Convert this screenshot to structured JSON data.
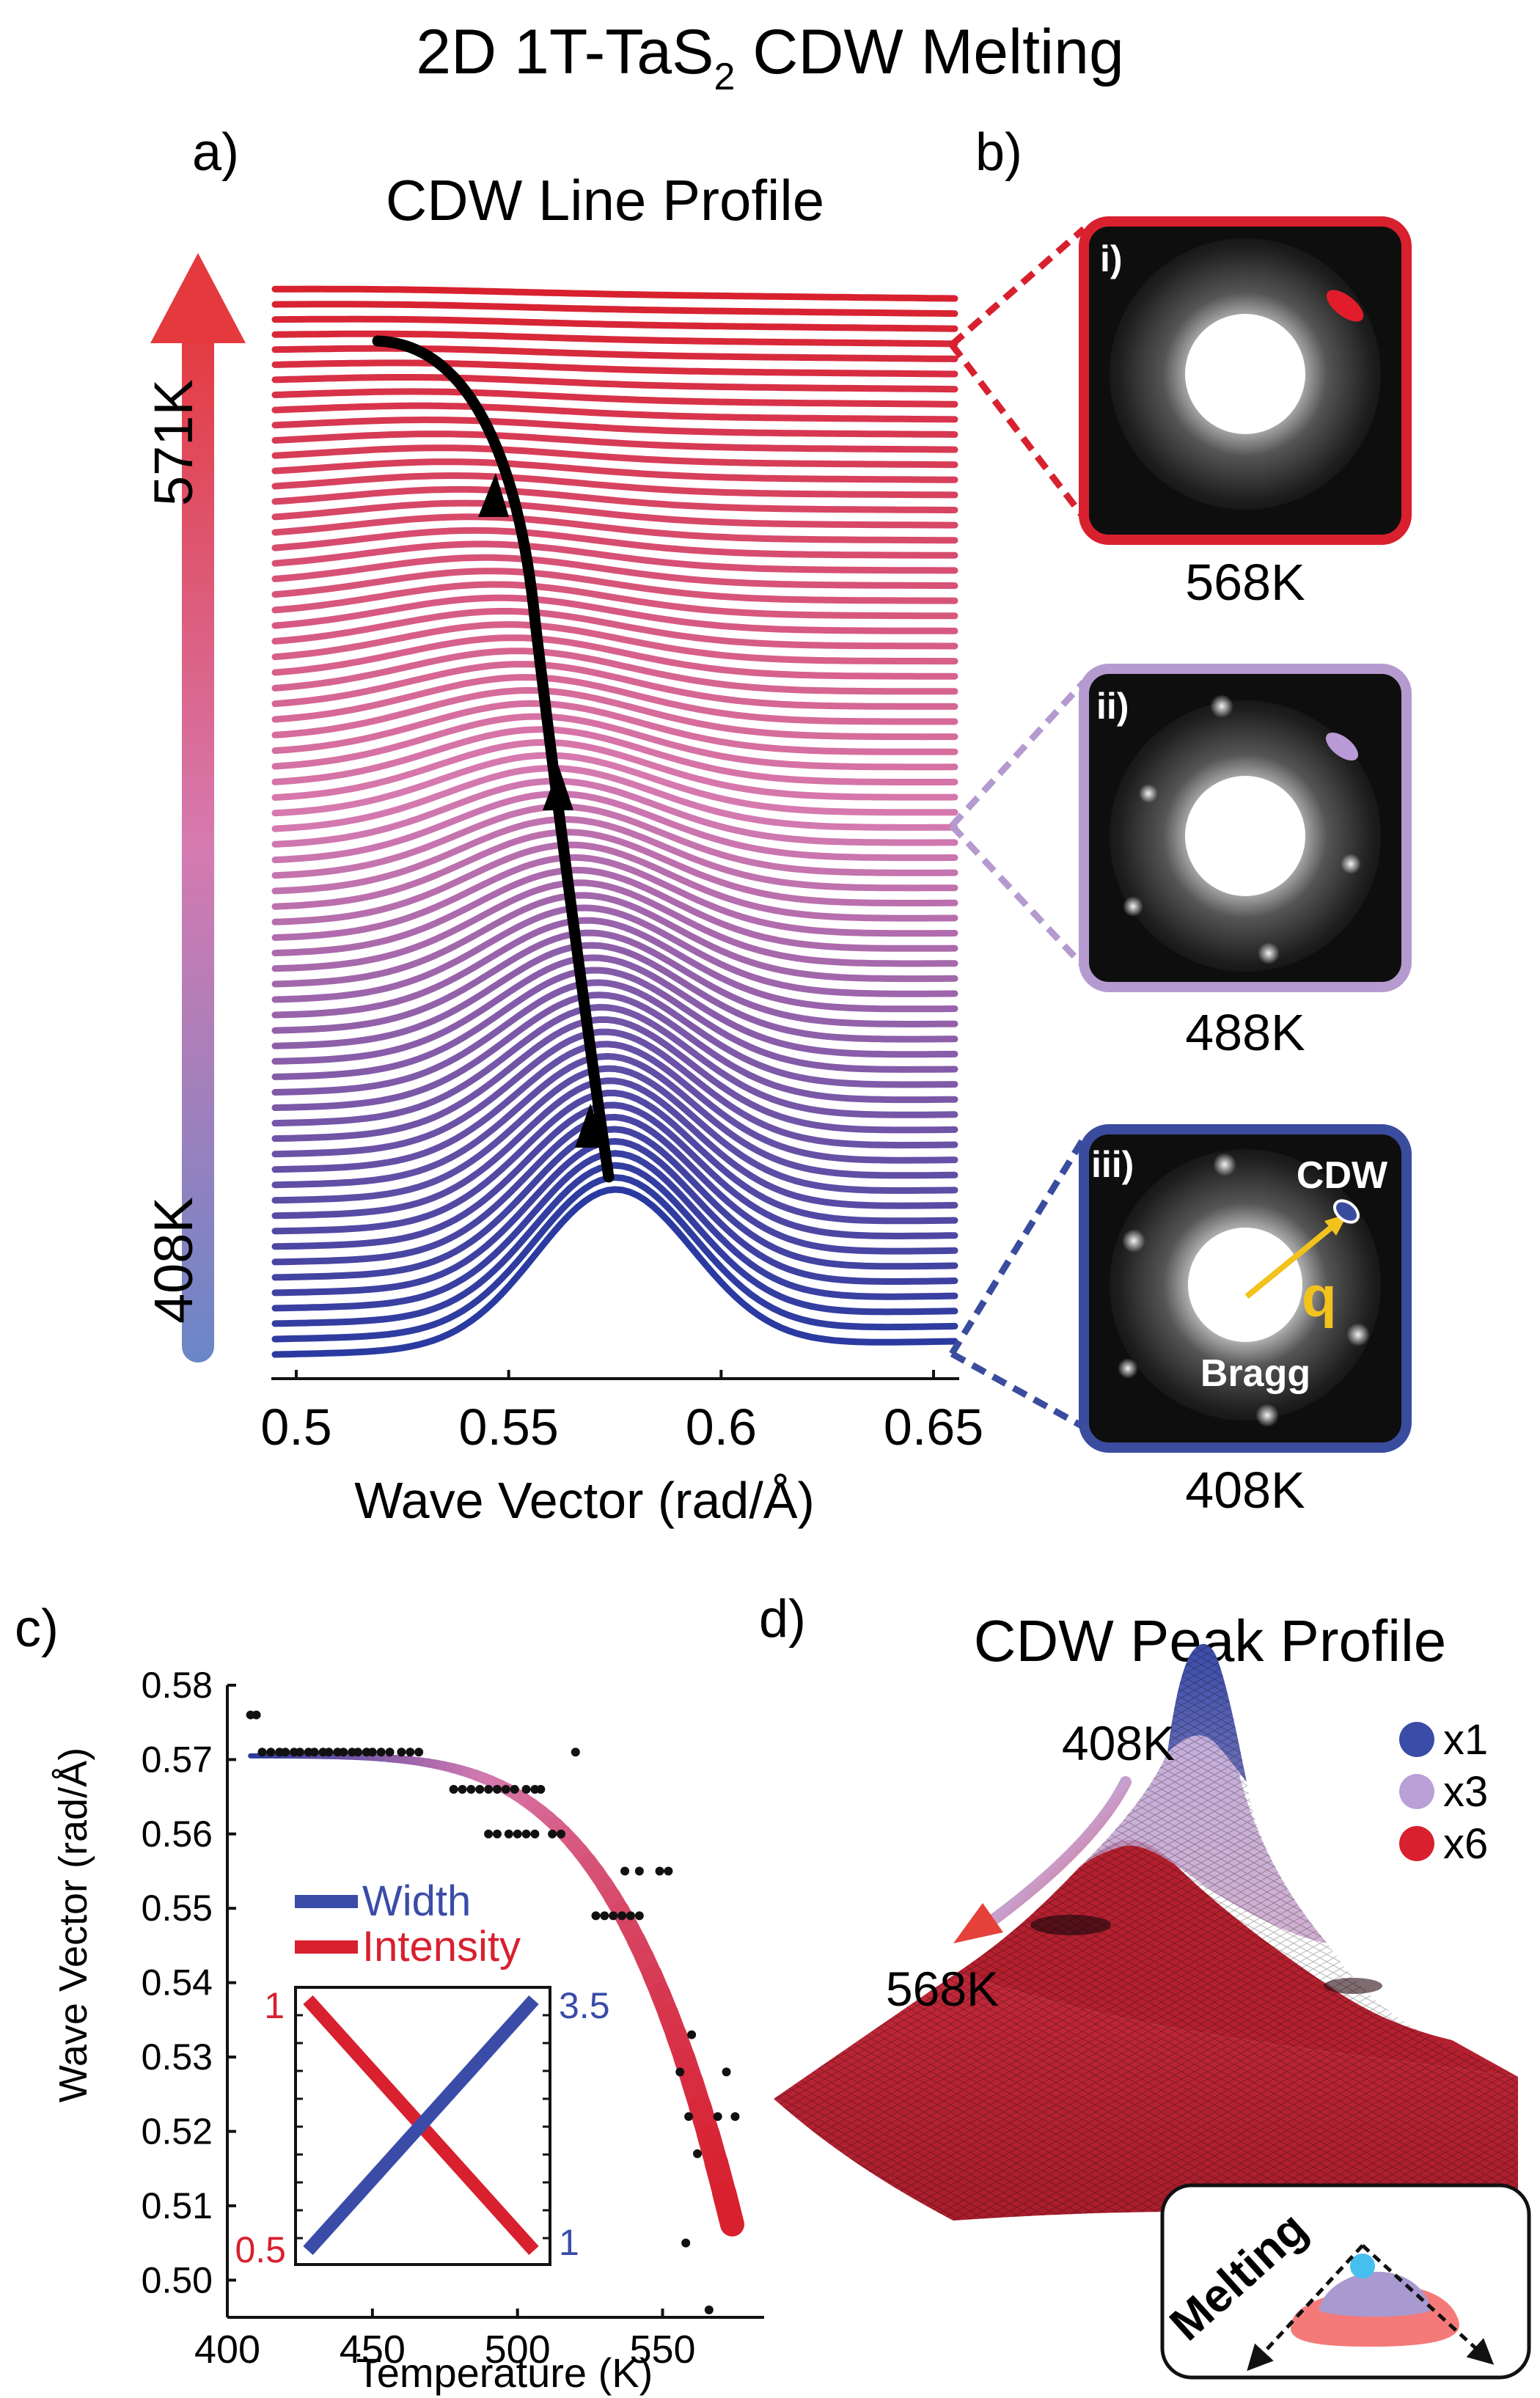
{
  "figure": {
    "title_main": "2D 1T-TaS",
    "title_sub": "2",
    "title_rest": " CDW Melting"
  },
  "panel_a": {
    "letter": "a)",
    "title": "CDW Line Profile",
    "temp_low": "408K",
    "temp_high": "571K",
    "xlabel": "Wave Vector (rad/Å)",
    "xticks": [
      "0.5",
      "0.55",
      "0.6",
      "0.65"
    ]
  },
  "panel_b": {
    "letter": "b)",
    "frames": [
      {
        "roman": "i)",
        "temp": "568K",
        "color": "#d8202e"
      },
      {
        "roman": "ii)",
        "temp": "488K",
        "color": "#b59ad0"
      },
      {
        "roman": "iii)",
        "temp": "408K",
        "color": "#3a4c9e"
      }
    ],
    "cdw_label": "CDW",
    "q_label": "q",
    "bragg_label": "Bragg"
  },
  "panel_c": {
    "letter": "c)",
    "xlabel": "Temperature (K)",
    "ylabel": "Wave Vector (rad/Å)",
    "xticks": [
      "400",
      "450",
      "500",
      "550"
    ],
    "yticks": [
      "0.50",
      "0.51",
      "0.52",
      "0.53",
      "0.54",
      "0.55",
      "0.56",
      "0.57",
      "0.58"
    ],
    "legend_width": "Width",
    "legend_intensity": "Intensity",
    "inset_left_top": "1",
    "inset_left_bottom": "0.5",
    "inset_right_top": "3.5",
    "inset_right_bottom": "1"
  },
  "panel_d": {
    "letter": "d)",
    "title": "CDW Peak Profile",
    "temp_start": "408K",
    "temp_end": "568K",
    "legend": [
      {
        "label": "x1",
        "color": "#3a4ca8"
      },
      {
        "label": "x3",
        "color": "#b9a0d6"
      },
      {
        "label": "x6",
        "color": "#d8202e"
      }
    ],
    "melting_label": "Melting"
  },
  "chart_data": [
    {
      "type": "line",
      "title": "CDW Line Profile",
      "xlabel": "Wave Vector (rad/Å)",
      "ylabel": "",
      "xlim": [
        0.495,
        0.655
      ],
      "temperature_range_K": [
        408,
        571
      ],
      "n_profiles": 70,
      "peak_position_start": 0.575,
      "peak_position_end": 0.521,
      "grid": false
    },
    {
      "type": "scatter",
      "xlabel": "Temperature (K)",
      "ylabel": "Wave Vector (rad/Å)",
      "xlim": [
        400,
        585
      ],
      "ylim": [
        0.495,
        0.58
      ],
      "points": [
        [
          408,
          0.576
        ],
        [
          410,
          0.576
        ],
        [
          412,
          0.571
        ],
        [
          415,
          0.571
        ],
        [
          418,
          0.571
        ],
        [
          420,
          0.571
        ],
        [
          423,
          0.571
        ],
        [
          425,
          0.571
        ],
        [
          428,
          0.571
        ],
        [
          430,
          0.571
        ],
        [
          433,
          0.571
        ],
        [
          435,
          0.571
        ],
        [
          438,
          0.571
        ],
        [
          440,
          0.571
        ],
        [
          443,
          0.571
        ],
        [
          445,
          0.571
        ],
        [
          448,
          0.571
        ],
        [
          450,
          0.571
        ],
        [
          453,
          0.571
        ],
        [
          456,
          0.571
        ],
        [
          460,
          0.571
        ],
        [
          463,
          0.571
        ],
        [
          466,
          0.571
        ],
        [
          478,
          0.566
        ],
        [
          481,
          0.566
        ],
        [
          484,
          0.566
        ],
        [
          487,
          0.566
        ],
        [
          490,
          0.566
        ],
        [
          493,
          0.566
        ],
        [
          496,
          0.566
        ],
        [
          499,
          0.566
        ],
        [
          503,
          0.566
        ],
        [
          506,
          0.566
        ],
        [
          508,
          0.566
        ],
        [
          490,
          0.56
        ],
        [
          493,
          0.56
        ],
        [
          497,
          0.56
        ],
        [
          500,
          0.56
        ],
        [
          503,
          0.56
        ],
        [
          506,
          0.56
        ],
        [
          512,
          0.56
        ],
        [
          515,
          0.56
        ],
        [
          520,
          0.571
        ],
        [
          527,
          0.549
        ],
        [
          530,
          0.549
        ],
        [
          533,
          0.549
        ],
        [
          536,
          0.549
        ],
        [
          539,
          0.549
        ],
        [
          542,
          0.549
        ],
        [
          537,
          0.555
        ],
        [
          542,
          0.555
        ],
        [
          549,
          0.555
        ],
        [
          552,
          0.555
        ],
        [
          556,
          0.528
        ],
        [
          559,
          0.522
        ],
        [
          562,
          0.517
        ],
        [
          558,
          0.505
        ],
        [
          560,
          0.533
        ],
        [
          566,
          0.496
        ],
        [
          569,
          0.522
        ],
        [
          572,
          0.528
        ],
        [
          575,
          0.522
        ]
      ],
      "fit_curve": {
        "name": "fit",
        "plateau": 0.5705,
        "end_temperature": 574,
        "end_value": 0.5075
      }
    },
    {
      "type": "line",
      "inset_of": "panel c",
      "series": [
        {
          "name": "Width",
          "x": [
            0,
            1
          ],
          "values": [
            1,
            3.5
          ],
          "color": "#3a4ca8"
        },
        {
          "name": "Intensity",
          "x": [
            0,
            1
          ],
          "values": [
            1,
            0.5
          ],
          "color": "#d8202e"
        }
      ]
    }
  ]
}
